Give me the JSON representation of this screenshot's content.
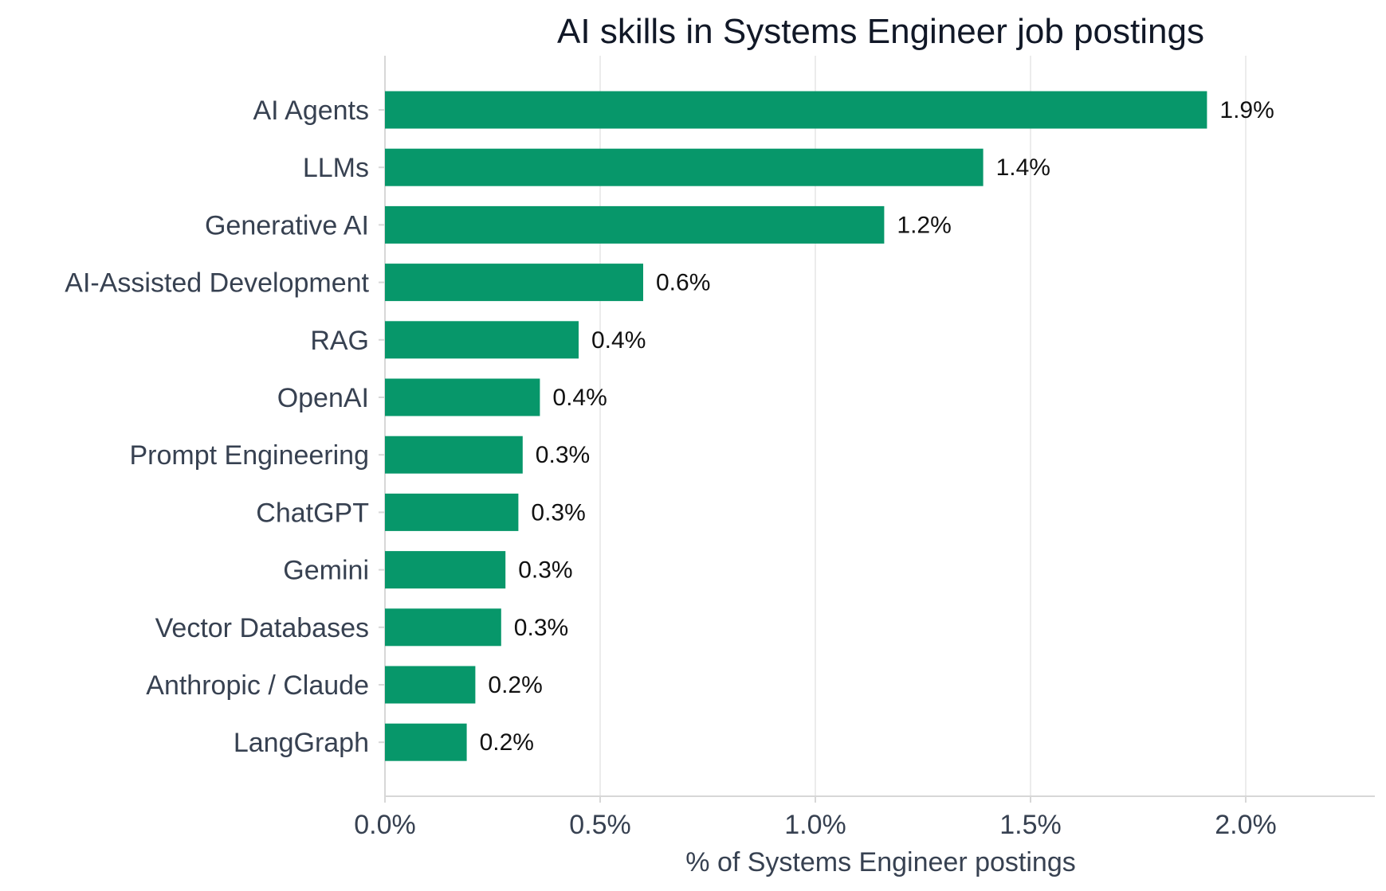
{
  "chart_data": {
    "type": "bar",
    "orientation": "horizontal",
    "title": "AI skills in Systems Engineer job postings",
    "xlabel": "% of Systems Engineer postings",
    "ylabel": "",
    "categories": [
      "AI Agents",
      "LLMs",
      "Generative AI",
      "AI-Assisted Development",
      "RAG",
      "OpenAI",
      "Prompt Engineering",
      "ChatGPT",
      "Gemini",
      "Vector Databases",
      "Anthropic / Claude",
      "LangGraph"
    ],
    "values": [
      1.91,
      1.39,
      1.16,
      0.6,
      0.45,
      0.36,
      0.32,
      0.31,
      0.28,
      0.27,
      0.21,
      0.19
    ],
    "value_labels": [
      "1.9%",
      "1.4%",
      "1.2%",
      "0.6%",
      "0.4%",
      "0.4%",
      "0.3%",
      "0.3%",
      "0.3%",
      "0.3%",
      "0.2%",
      "0.2%"
    ],
    "xlim": [
      0,
      2.3
    ],
    "xticks": [
      0,
      0.5,
      1.0,
      1.5,
      2.0
    ],
    "xtick_labels": [
      "0.0%",
      "0.5%",
      "1.0%",
      "1.5%",
      "2.0%"
    ],
    "grid": "vertical",
    "legend": "none",
    "colors": {
      "bar": "#07976a",
      "grid": "#ececec",
      "axis": "#d7d7d7",
      "text": "#374151",
      "title": "#111827"
    }
  }
}
